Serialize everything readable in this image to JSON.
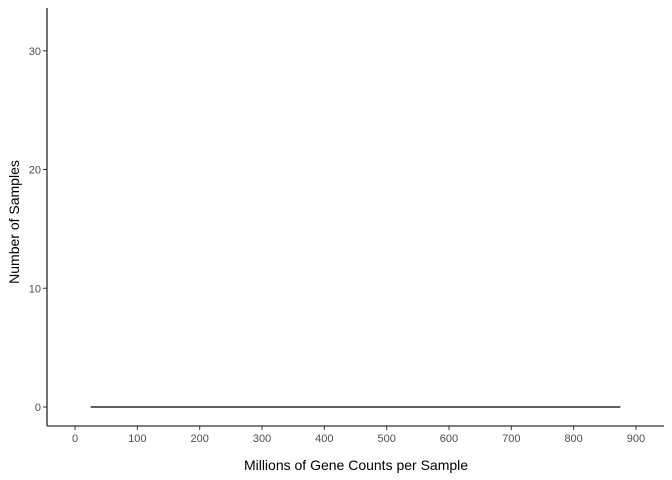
{
  "chart_data": {
    "type": "line",
    "title": "",
    "xlabel": "Millions of Gene Counts per Sample",
    "ylabel": "Number of Samples",
    "xlim": [
      -45,
      945
    ],
    "ylim": [
      -1.6,
      33.6
    ],
    "xticks": [
      0,
      100,
      200,
      300,
      400,
      500,
      600,
      700,
      800,
      900
    ],
    "xtick_labels": [
      "0",
      "100",
      "200",
      "300",
      "400",
      "500",
      "600",
      "700",
      "800",
      "900"
    ],
    "yticks": [
      0,
      10,
      20,
      30
    ],
    "ytick_labels": [
      "0",
      "10",
      "20",
      "30"
    ],
    "grid": false,
    "series": [
      {
        "color": "#000000",
        "x": [
          25,
          875
        ],
        "y": [
          0,
          0
        ]
      }
    ]
  }
}
